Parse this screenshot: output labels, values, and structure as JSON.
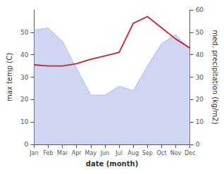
{
  "chart_data": {
    "type": "line",
    "categories": [
      "Jan",
      "Feb",
      "Mar",
      "Apr",
      "May",
      "Jun",
      "Jul",
      "Aug",
      "Sep",
      "Oct",
      "Nov",
      "Dec"
    ],
    "xlabel": "date (month)",
    "ylabel": "max temp (C)",
    "y2label": "med. precipitation (kg/m2)",
    "ylim": [
      0,
      60
    ],
    "yticks": [
      0,
      10,
      20,
      30,
      40,
      50
    ],
    "y2lim": [
      0,
      60
    ],
    "y2ticks": [
      0,
      10,
      20,
      30,
      40,
      50,
      60
    ],
    "grid": false,
    "series": [
      {
        "type": "area",
        "axis": "y2",
        "color": "#aab4e8",
        "values": [
          51,
          52,
          46,
          34,
          22,
          22,
          26,
          24,
          35,
          45,
          49,
          42
        ]
      },
      {
        "type": "line",
        "color": "#cc2233",
        "values": [
          35.5,
          35.0,
          35.0,
          36.0,
          38.0,
          39.5,
          41.0,
          54.0,
          57.0,
          52.0,
          47.0,
          43.0
        ]
      }
    ]
  }
}
